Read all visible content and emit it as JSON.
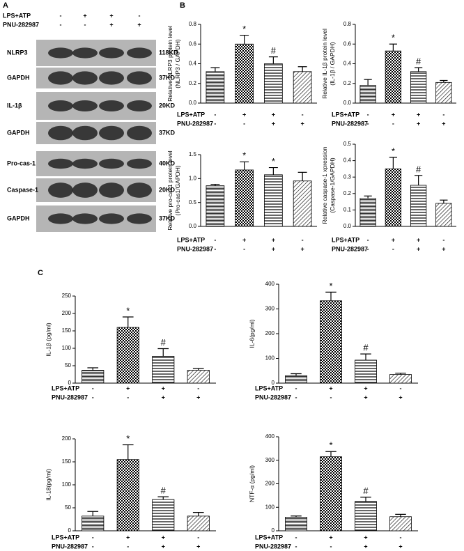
{
  "panels": {
    "a": "A",
    "b": "B",
    "c": "C"
  },
  "blot": {
    "conditions": [
      {
        "name": "LPS+ATP",
        "signs": [
          "-",
          "+",
          "+",
          "-"
        ]
      },
      {
        "name": "PNU-282987",
        "signs": [
          "-",
          "-",
          "+",
          "+"
        ]
      }
    ],
    "rows": [
      {
        "label": "NLRP3",
        "size": "118KD"
      },
      {
        "label": "GAPDH",
        "size": "37KD"
      },
      {
        "label": "IL-1β",
        "size": "20KD"
      },
      {
        "label": "GAPDH",
        "size": "37KD"
      },
      {
        "label": "Pro-cas-1",
        "size": "40KD"
      },
      {
        "label": "Caspase-1",
        "size": "20KD"
      },
      {
        "label": "GAPDH",
        "size": "37KD"
      }
    ]
  },
  "chart_data": [
    {
      "type": "bar",
      "ylabel": [
        "Relative NLRP3 protein level",
        "(NLRP3 / GAPDH)"
      ],
      "values": [
        0.32,
        0.6,
        0.4,
        0.32
      ],
      "errors": [
        0.04,
        0.09,
        0.07,
        0.05
      ],
      "markers": [
        null,
        "*",
        "#",
        null
      ],
      "ylim": [
        0,
        0.8
      ],
      "yticks": [
        {
          "value": 0,
          "label": "0.0"
        },
        0.2,
        0.4,
        0.6,
        0.8
      ],
      "color": "#000000",
      "conditions": [
        {
          "name": "LPS+ATP",
          "signs": [
            "-",
            "+",
            "+",
            "-"
          ]
        },
        {
          "name": "PNU-282987",
          "signs": [
            "-",
            "-",
            "+",
            "+"
          ]
        }
      ]
    },
    {
      "type": "bar",
      "ylabel": [
        "Relative IL-1β protein level",
        "(IL-1β / GAPDH)"
      ],
      "values": [
        0.18,
        0.53,
        0.32,
        0.21
      ],
      "errors": [
        0.06,
        0.07,
        0.04,
        0.02
      ],
      "markers": [
        null,
        "*",
        "#",
        null
      ],
      "ylim": [
        0,
        0.8
      ],
      "yticks": [
        {
          "value": 0,
          "label": "0.0"
        },
        0.2,
        0.4,
        0.6,
        0.8
      ],
      "color": "#000000",
      "conditions": [
        {
          "name": "LPS+ATP",
          "signs": [
            "-",
            "+",
            "+",
            "-"
          ]
        },
        {
          "name": "PNU-282987",
          "signs": [
            "-",
            "-",
            "+",
            "+"
          ]
        }
      ]
    },
    {
      "type": "bar",
      "ylabel": [
        "Relative pro-cas1 protein level",
        "(Pro-cas1/GAPDH)"
      ],
      "values": [
        0.85,
        1.18,
        1.08,
        0.95
      ],
      "errors": [
        0.03,
        0.17,
        0.15,
        0.18
      ],
      "markers": [
        null,
        "*",
        "*",
        null
      ],
      "ylim": [
        0,
        1.5
      ],
      "yticks": [
        {
          "value": 0,
          "label": "0.0"
        },
        0.5,
        {
          "value": 1,
          "label": "1.0"
        },
        1.5
      ],
      "color": "#000000",
      "conditions": [
        {
          "name": "LPS+ATP",
          "signs": [
            "-",
            "+",
            "+",
            "-"
          ]
        },
        {
          "name": "PNU-282987",
          "signs": [
            "-",
            "-",
            "+",
            "+"
          ]
        }
      ]
    },
    {
      "type": "bar",
      "ylabel": [
        "Relative caspase-1 xpression",
        "(Caspase-1/GAPDH)"
      ],
      "values": [
        0.17,
        0.35,
        0.25,
        0.14
      ],
      "errors": [
        0.015,
        0.07,
        0.06,
        0.02
      ],
      "markers": [
        null,
        "*",
        "#",
        null
      ],
      "ylim": [
        0,
        0.5
      ],
      "yticks": [
        {
          "value": 0,
          "label": "0.0"
        },
        0.1,
        0.2,
        0.3,
        0.4,
        0.5
      ],
      "color": "#000000",
      "conditions": [
        {
          "name": "LPS+ATP",
          "signs": [
            "-",
            "+",
            "+",
            "-"
          ]
        },
        {
          "name": "PNU-282987",
          "signs": [
            "-",
            "-",
            "+",
            "+"
          ]
        }
      ]
    },
    {
      "type": "bar",
      "ylabel": [
        "IL-1β (pg/ml)"
      ],
      "values": [
        37,
        160,
        77,
        37
      ],
      "errors": [
        7,
        30,
        22,
        5
      ],
      "markers": [
        null,
        "*",
        "#",
        null
      ],
      "ylim": [
        0,
        250
      ],
      "yticks": [
        0,
        50,
        100,
        150,
        200,
        250
      ],
      "color": "#000000",
      "conditions": [
        {
          "name": "LPS+ATP",
          "signs": [
            "-",
            "+",
            "+",
            "-"
          ]
        },
        {
          "name": "PNU-282987",
          "signs": [
            "-",
            "-",
            "+",
            "+"
          ]
        }
      ]
    },
    {
      "type": "bar",
      "ylabel": [
        "IL-6(pg/ml)"
      ],
      "values": [
        30,
        333,
        93,
        35
      ],
      "errors": [
        8,
        35,
        25,
        5
      ],
      "markers": [
        null,
        "*",
        "#",
        null
      ],
      "ylim": [
        0,
        400
      ],
      "yticks": [
        0,
        100,
        200,
        300,
        400
      ],
      "color": "#000000",
      "conditions": [
        {
          "name": "LPS+ATP",
          "signs": [
            "-",
            "+",
            "+",
            "-"
          ]
        },
        {
          "name": "PNU-282987",
          "signs": [
            "-",
            "-",
            "+",
            "+"
          ]
        }
      ]
    },
    {
      "type": "bar",
      "ylabel": [
        "IL-18(pg/ml)"
      ],
      "values": [
        32,
        155,
        68,
        32
      ],
      "errors": [
        10,
        32,
        6,
        8
      ],
      "markers": [
        null,
        "*",
        "#",
        null
      ],
      "ylim": [
        0,
        200
      ],
      "yticks": [
        0,
        50,
        100,
        150,
        200
      ],
      "color": "#000000",
      "conditions": [
        {
          "name": "LPS+ATP",
          "signs": [
            "-",
            "+",
            "+",
            "-"
          ]
        },
        {
          "name": "PNU-282987",
          "signs": [
            "-",
            "-",
            "+",
            "+"
          ]
        }
      ]
    },
    {
      "type": "bar",
      "ylabel": [
        "NTF-α (pg/ml)"
      ],
      "values": [
        58,
        315,
        125,
        60
      ],
      "errors": [
        5,
        22,
        18,
        10
      ],
      "markers": [
        null,
        "*",
        "#",
        null
      ],
      "ylim": [
        0,
        400
      ],
      "yticks": [
        0,
        100,
        200,
        300,
        400
      ],
      "color": "#000000",
      "conditions": [
        {
          "name": "LPS+ATP",
          "signs": [
            "-",
            "+",
            "+",
            "-"
          ]
        },
        {
          "name": "PNU-282987",
          "signs": [
            "-",
            "-",
            "+",
            "+"
          ]
        }
      ]
    }
  ]
}
